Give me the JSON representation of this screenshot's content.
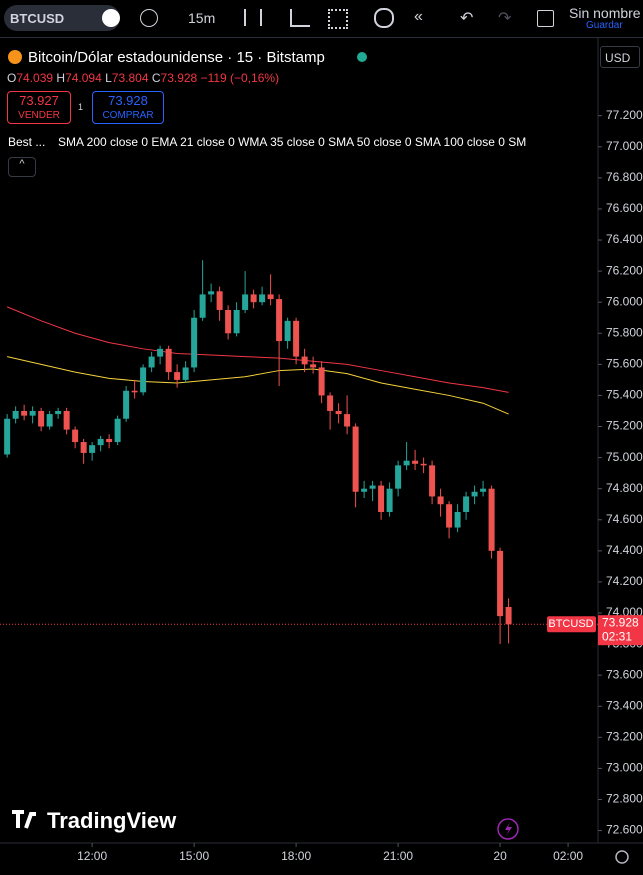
{
  "toolbar": {
    "symbol": "BTCUSD",
    "interval": "15m",
    "layout_name": "Sin nombre",
    "save": "Guardar"
  },
  "legend": {
    "title": "Bitcoin/Dólar estadounidense · 15 · Bitstamp",
    "ohlc": [
      {
        "label": "O",
        "value": 74.039
      },
      {
        "label": "H",
        "value": 74.094
      },
      {
        "label": "L",
        "value": 73.804
      },
      {
        "label": "C",
        "value": 73.928
      }
    ],
    "change": "−119",
    "change_pct": "(−0,16%)",
    "sell_price": 73.927,
    "sell_label": "VENDER",
    "spread": 1,
    "buy_price": 73.928,
    "buy_label": "COMPRAR",
    "indicators_label": "Best ...",
    "indicators": "SMA 200 close 0 EMA 21 close 0 WMA 35 close 0 SMA 50 close 0 SMA 100 close 0 SM"
  },
  "currency": "USD",
  "logo": "TradingView",
  "chart_data": {
    "type": "candlestick",
    "x": [
      9.5,
      9.75,
      10,
      10.25,
      10.5,
      10.75,
      11,
      11.25,
      11.5,
      11.75,
      12,
      12.25,
      12.5,
      12.75,
      13,
      13.25,
      13.5,
      13.75,
      14,
      14.25,
      14.5,
      14.75,
      15,
      15.25,
      15.5,
      15.75,
      16,
      16.25,
      16.5,
      16.75,
      17,
      17.25,
      17.5,
      17.75,
      18,
      18.25,
      18.5,
      18.75,
      19,
      19.25,
      19.5,
      19.75,
      20,
      20.25,
      20.5,
      20.75,
      21,
      21.25,
      21.5,
      21.75,
      22,
      22.25,
      22.5,
      22.75,
      23,
      23.25,
      23.5,
      23.75,
      24,
      24.25
    ],
    "open": [
      75.02,
      75.25,
      75.3,
      75.27,
      75.3,
      75.2,
      75.28,
      75.3,
      75.18,
      75.1,
      75.03,
      75.08,
      75.12,
      75.1,
      75.25,
      75.43,
      75.42,
      75.58,
      75.65,
      75.7,
      75.55,
      75.5,
      75.58,
      75.9,
      76.05,
      76.07,
      75.95,
      75.8,
      75.95,
      76.05,
      76.0,
      76.05,
      76.02,
      75.75,
      75.88,
      75.65,
      75.6,
      75.58,
      75.4,
      75.3,
      75.28,
      75.2,
      74.78,
      74.8,
      74.82,
      74.65,
      74.8,
      74.95,
      74.98,
      74.96,
      74.95,
      74.75,
      74.7,
      74.55,
      74.65,
      74.75,
      74.78,
      74.8,
      74.4,
      74.039
    ],
    "high": [
      75.28,
      75.33,
      75.34,
      75.33,
      75.32,
      75.3,
      75.32,
      75.32,
      75.2,
      75.12,
      75.1,
      75.14,
      75.15,
      75.27,
      75.46,
      75.5,
      75.6,
      75.68,
      75.72,
      75.72,
      75.6,
      75.62,
      75.95,
      76.27,
      76.12,
      76.1,
      75.98,
      76.0,
      76.2,
      76.08,
      76.1,
      76.18,
      76.05,
      75.9,
      75.9,
      75.7,
      75.65,
      75.62,
      75.42,
      75.35,
      75.4,
      75.22,
      74.85,
      74.85,
      74.85,
      74.84,
      74.98,
      75.1,
      75.05,
      75.0,
      74.98,
      74.8,
      74.72,
      74.7,
      74.78,
      74.82,
      74.85,
      74.82,
      74.42,
      74.094
    ],
    "low": [
      75.0,
      75.22,
      75.24,
      75.22,
      75.17,
      75.18,
      75.25,
      75.15,
      75.06,
      74.96,
      74.98,
      75.04,
      75.06,
      75.08,
      75.23,
      75.38,
      75.4,
      75.55,
      75.6,
      75.5,
      75.45,
      75.48,
      75.55,
      75.88,
      76.0,
      75.88,
      75.76,
      75.78,
      75.93,
      75.96,
      75.98,
      75.98,
      75.46,
      75.7,
      75.6,
      75.55,
      75.54,
      75.35,
      75.18,
      75.22,
      75.15,
      74.68,
      74.74,
      74.72,
      74.6,
      74.62,
      74.75,
      74.92,
      74.92,
      74.9,
      74.7,
      74.62,
      74.48,
      74.52,
      74.6,
      74.7,
      74.75,
      74.35,
      73.8,
      73.804
    ],
    "close": [
      75.25,
      75.3,
      75.27,
      75.3,
      75.2,
      75.28,
      75.3,
      75.18,
      75.1,
      75.03,
      75.08,
      75.12,
      75.1,
      75.25,
      75.43,
      75.42,
      75.58,
      75.65,
      75.7,
      75.55,
      75.5,
      75.58,
      75.9,
      76.05,
      76.07,
      75.95,
      75.8,
      75.95,
      76.05,
      76.0,
      76.05,
      76.02,
      75.75,
      75.88,
      75.65,
      75.6,
      75.58,
      75.4,
      75.3,
      75.28,
      75.2,
      74.78,
      74.8,
      74.82,
      74.65,
      74.8,
      74.95,
      74.98,
      74.96,
      74.95,
      74.75,
      74.7,
      74.55,
      74.65,
      74.75,
      74.78,
      74.8,
      74.4,
      73.98,
      73.928
    ],
    "up_color": "#26a69a",
    "down_color": "#ef5350",
    "lines": [
      {
        "color": "#f23645",
        "x": [
          9.5,
          10.5,
          11.5,
          12.5,
          13.5,
          14.5,
          15.5,
          16.5,
          17.5,
          18.5,
          19.5,
          20.5,
          21.5,
          22.5,
          23.5,
          24.25
        ],
        "values": [
          75.97,
          75.88,
          75.8,
          75.74,
          75.7,
          75.67,
          75.66,
          75.65,
          75.64,
          75.62,
          75.6,
          75.56,
          75.52,
          75.48,
          75.45,
          75.42
        ]
      },
      {
        "color": "#f5d23c",
        "x": [
          9.5,
          10.5,
          11.5,
          12.5,
          13.5,
          14.5,
          15.5,
          16.5,
          17.5,
          18.5,
          19.5,
          20.5,
          21.5,
          22.5,
          23.5,
          24.25
        ],
        "values": [
          75.65,
          75.6,
          75.55,
          75.51,
          75.49,
          75.48,
          75.5,
          75.52,
          75.56,
          75.57,
          75.54,
          75.48,
          75.44,
          75.4,
          75.35,
          75.28
        ]
      }
    ],
    "last_price": {
      "label": "BTCUSD",
      "value": 73.928,
      "countdown": "02:31",
      "color": "#f23645"
    },
    "xlim": [
      9.29,
      26.88
    ],
    "xticks": [
      {
        "value": 12,
        "label": "12:00"
      },
      {
        "value": 15,
        "label": "15:00"
      },
      {
        "value": 18,
        "label": "18:00"
      },
      {
        "value": 21,
        "label": "21:00"
      },
      {
        "value": 24,
        "label": "20"
      },
      {
        "value": 26,
        "label": "02:00"
      }
    ],
    "ylim": [
      72.52,
      77.7
    ],
    "yticks": [
      {
        "value": 77.2,
        "label": "77.200"
      },
      {
        "value": 77.0,
        "label": "77.000"
      },
      {
        "value": 76.8,
        "label": "76.800"
      },
      {
        "value": 76.6,
        "label": "76.600"
      },
      {
        "value": 76.4,
        "label": "76.400"
      },
      {
        "value": 76.2,
        "label": "76.200"
      },
      {
        "value": 76.0,
        "label": "76.000"
      },
      {
        "value": 75.8,
        "label": "75.800"
      },
      {
        "value": 75.6,
        "label": "75.600"
      },
      {
        "value": 75.4,
        "label": "75.400"
      },
      {
        "value": 75.2,
        "label": "75.200"
      },
      {
        "value": 75.0,
        "label": "75.000"
      },
      {
        "value": 74.8,
        "label": "74.800"
      },
      {
        "value": 74.6,
        "label": "74.600"
      },
      {
        "value": 74.4,
        "label": "74.400"
      },
      {
        "value": 74.2,
        "label": "74.200"
      },
      {
        "value": 74.0,
        "label": "74.000"
      },
      {
        "value": 73.8,
        "label": "73.800"
      },
      {
        "value": 73.6,
        "label": "73.600"
      },
      {
        "value": 73.4,
        "label": "73.400"
      },
      {
        "value": 73.2,
        "label": "73.200"
      },
      {
        "value": 73.0,
        "label": "73.000"
      },
      {
        "value": 72.8,
        "label": "72.800"
      },
      {
        "value": 72.6,
        "label": "72.600"
      }
    ]
  }
}
